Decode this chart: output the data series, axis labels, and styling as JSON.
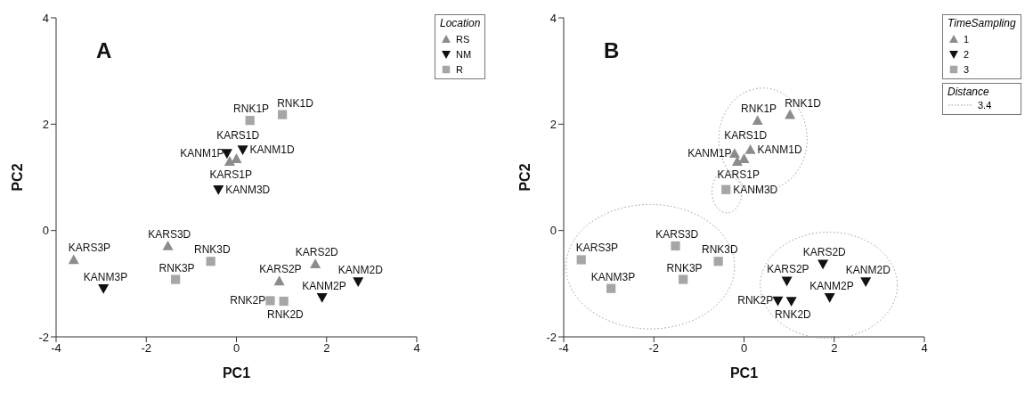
{
  "chart_data": [
    {
      "type": "scatter",
      "title": "A",
      "xlabel": "PC1",
      "ylabel": "PC2",
      "xlim": [
        -4,
        4
      ],
      "xticks": [
        -4,
        -2,
        0,
        2,
        4
      ],
      "ylim": [
        -2,
        4
      ],
      "yticks": [
        -2,
        0,
        2,
        4
      ],
      "legend": "top right",
      "legend_title": "Location",
      "series": [
        {
          "name": "RS",
          "color": "#8c8c8c",
          "marker": "triangle",
          "x": [
            -3.61,
            -1.52,
            -0.15,
            0.0,
            0.95,
            1.75
          ],
          "values": [
            -0.55,
            -0.29,
            1.3,
            1.35,
            -0.95,
            -0.63
          ]
        },
        {
          "name": "NM",
          "color": "#111111",
          "marker": "triangle-down",
          "x": [
            -2.95,
            -0.4,
            -0.21,
            0.14,
            1.9,
            2.7
          ],
          "values": [
            -1.09,
            0.77,
            1.45,
            1.52,
            -1.26,
            -0.96
          ]
        },
        {
          "name": "R",
          "color": "#a6a6a6",
          "marker": "square",
          "x": [
            -1.35,
            -0.57,
            0.3,
            1.02,
            0.75,
            1.05
          ],
          "values": [
            -0.92,
            -0.58,
            2.07,
            2.18,
            -1.32,
            -1.33
          ]
        }
      ],
      "annotations": [
        {
          "text": "KARS3P",
          "x": -3.61,
          "y": -0.55
        },
        {
          "text": "KARS3D",
          "x": -1.52,
          "y": -0.29
        },
        {
          "text": "KARS1P",
          "x": -0.15,
          "y": 1.3
        },
        {
          "text": "KARS1D",
          "x": 0.0,
          "y": 1.35
        },
        {
          "text": "KARS2P",
          "x": 0.95,
          "y": -0.95
        },
        {
          "text": "KARS2D",
          "x": 1.75,
          "y": -0.63
        },
        {
          "text": "KANM3P",
          "x": -2.95,
          "y": -1.09
        },
        {
          "text": "KANM3D",
          "x": -0.4,
          "y": 0.77
        },
        {
          "text": "KANM1P",
          "x": -0.21,
          "y": 1.45
        },
        {
          "text": "KANM1D",
          "x": 0.14,
          "y": 1.52
        },
        {
          "text": "KANM2P",
          "x": 1.9,
          "y": -1.26
        },
        {
          "text": "KANM2D",
          "x": 2.7,
          "y": -0.96
        },
        {
          "text": "RNK3P",
          "x": -1.35,
          "y": -0.92
        },
        {
          "text": "RNK3D",
          "x": -0.57,
          "y": -0.58
        },
        {
          "text": "RNK1P",
          "x": 0.3,
          "y": 2.07
        },
        {
          "text": "RNK1D",
          "x": 1.02,
          "y": 2.18
        },
        {
          "text": "RNK2P",
          "x": 0.75,
          "y": -1.32
        },
        {
          "text": "RNK2D",
          "x": 1.05,
          "y": -1.33
        }
      ]
    },
    {
      "type": "scatter",
      "title": "B",
      "xlabel": "PC1",
      "ylabel": "PC2",
      "xlim": [
        -4,
        4
      ],
      "xticks": [
        -4,
        -2,
        0,
        2,
        4
      ],
      "ylim": [
        -2,
        4
      ],
      "yticks": [
        -2,
        0,
        2,
        4
      ],
      "legend": "top right",
      "legend_title": "TimeSampling",
      "series": [
        {
          "name": "1",
          "color": "#8c8c8c",
          "marker": "triangle",
          "x": [
            -0.15,
            0.0,
            -0.21,
            0.14,
            0.3,
            1.02
          ],
          "values": [
            1.3,
            1.35,
            1.45,
            1.52,
            2.07,
            2.18
          ]
        },
        {
          "name": "2",
          "color": "#111111",
          "marker": "triangle-down",
          "x": [
            0.95,
            1.75,
            1.9,
            2.7,
            0.75,
            1.05
          ],
          "values": [
            -0.95,
            -0.63,
            -1.26,
            -0.96,
            -1.32,
            -1.33
          ]
        },
        {
          "name": "3",
          "color": "#a6a6a6",
          "marker": "square",
          "x": [
            -3.61,
            -1.52,
            -2.95,
            -0.4,
            -1.35,
            -0.57
          ],
          "values": [
            -0.55,
            -0.29,
            -1.09,
            0.77,
            -0.92,
            -0.58
          ]
        }
      ],
      "annotations": [
        "Distance",
        "3.4",
        {
          "text": "KARS3P",
          "x": -3.61,
          "y": -0.55
        },
        {
          "text": "KARS3D",
          "x": -1.52,
          "y": -0.29
        },
        {
          "text": "KARS1P",
          "x": -0.15,
          "y": 1.3
        },
        {
          "text": "KARS1D",
          "x": 0.0,
          "y": 1.35
        },
        {
          "text": "KARS2P",
          "x": 0.95,
          "y": -0.95
        },
        {
          "text": "KARS2D",
          "x": 1.75,
          "y": -0.63
        },
        {
          "text": "KANM3P",
          "x": -2.95,
          "y": -1.09
        },
        {
          "text": "KANM3D",
          "x": -0.4,
          "y": 0.77
        },
        {
          "text": "KANM1P",
          "x": -0.21,
          "y": 1.45
        },
        {
          "text": "KANM1D",
          "x": 0.14,
          "y": 1.52
        },
        {
          "text": "KANM2P",
          "x": 1.9,
          "y": -1.26
        },
        {
          "text": "KANM2D",
          "x": 2.7,
          "y": -0.96
        },
        {
          "text": "RNK3P",
          "x": -1.35,
          "y": -0.92
        },
        {
          "text": "RNK3D",
          "x": -0.57,
          "y": -0.58
        },
        {
          "text": "RNK1P",
          "x": 0.3,
          "y": 2.07
        },
        {
          "text": "RNK1D",
          "x": 1.02,
          "y": 2.18
        },
        {
          "text": "RNK2P",
          "x": 0.75,
          "y": -1.32
        },
        {
          "text": "RNK2D",
          "x": 1.05,
          "y": -1.33
        }
      ]
    }
  ]
}
